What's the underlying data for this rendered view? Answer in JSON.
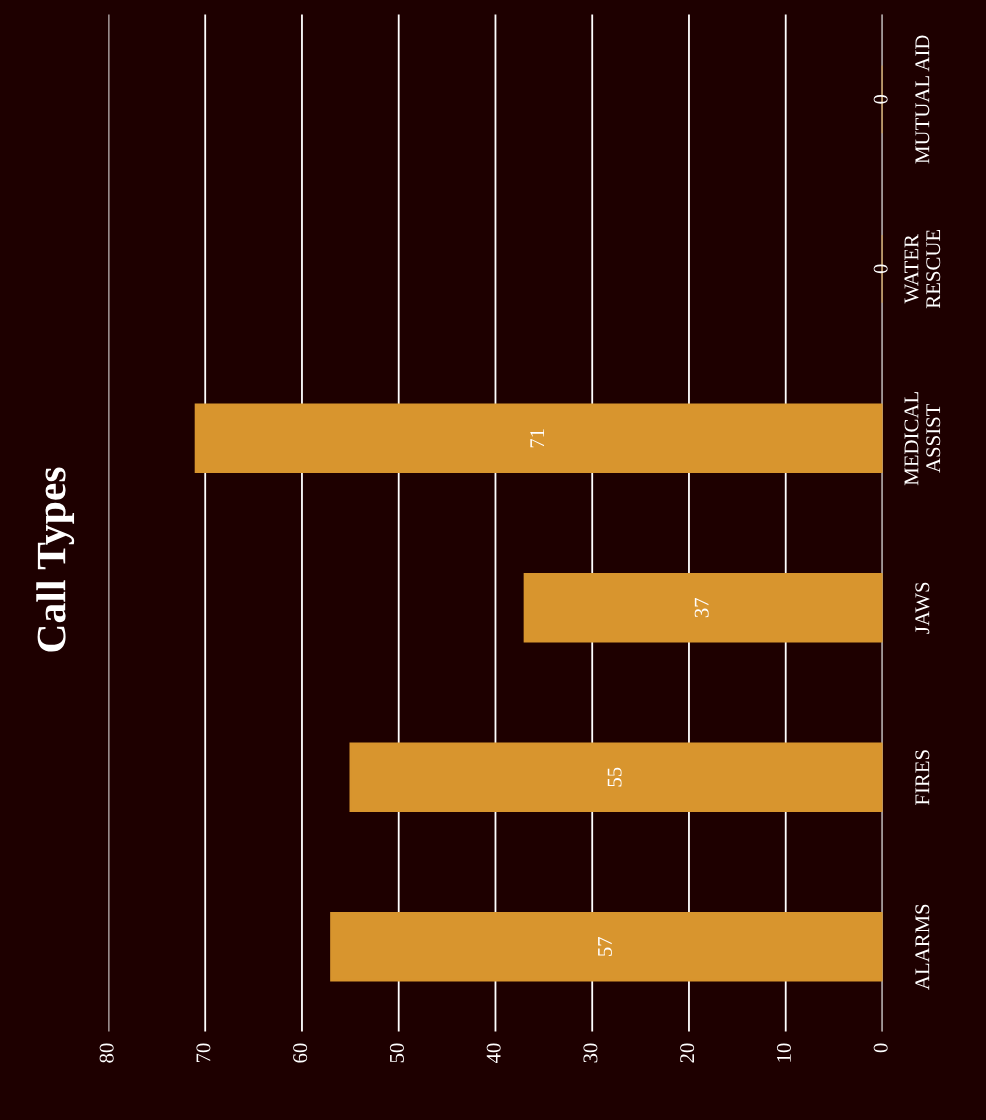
{
  "chart_data": {
    "type": "bar",
    "title": "Call Types",
    "orientation": "horizontal",
    "categories": [
      "MUTUAL AID",
      "WATER\nRESCUE",
      "MEDICAL\nASSIST",
      "JAWS",
      "FIRES",
      "ALARMS"
    ],
    "values": [
      0,
      0,
      71,
      37,
      55,
      57
    ],
    "color": "#d8952e",
    "xlim": [
      80,
      0
    ],
    "xticks": [
      0,
      10,
      20,
      30,
      40,
      50,
      60,
      70,
      80
    ],
    "grid": "x",
    "data_labels": true
  }
}
